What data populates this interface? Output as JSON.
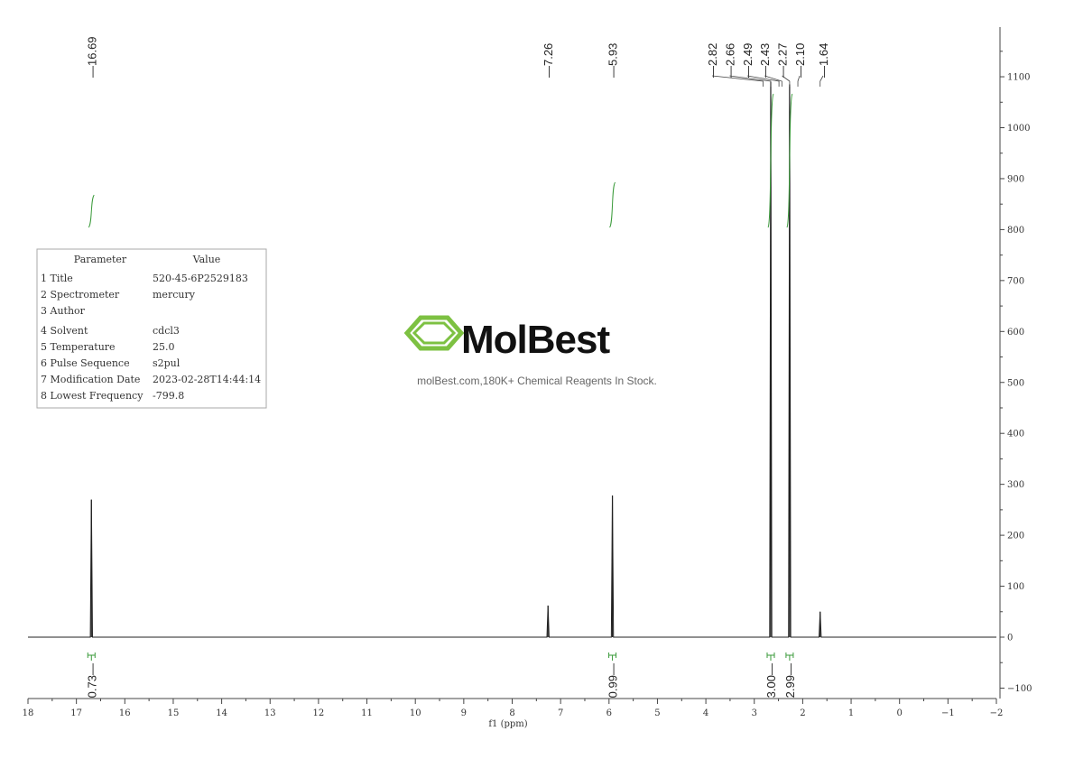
{
  "chart_data": {
    "type": "line",
    "xlabel": "f1 (ppm)",
    "xlim": [
      18,
      -2
    ],
    "ylim": [
      -120,
      1200
    ],
    "x_ticks": [
      "18",
      "17",
      "16",
      "15",
      "14",
      "13",
      "12",
      "11",
      "10",
      "9",
      "8",
      "7",
      "6",
      "5",
      "4",
      "3",
      "2",
      "1",
      "0",
      "−1",
      "−2"
    ],
    "y_ticks": [
      "1100",
      "1000",
      "900",
      "800",
      "700",
      "600",
      "500",
      "400",
      "300",
      "200",
      "100",
      "0",
      "−100"
    ],
    "peaks": [
      {
        "ppm": 16.69,
        "height": 270
      },
      {
        "ppm": 7.26,
        "height": 62
      },
      {
        "ppm": 5.93,
        "height": 278
      },
      {
        "ppm": 2.66,
        "height": 1090
      },
      {
        "ppm": 2.27,
        "height": 1085
      },
      {
        "ppm": 1.64,
        "height": 50
      }
    ],
    "peak_labels": [
      "16.69",
      "7.26",
      "5.93",
      "2.82",
      "2.66",
      "2.49",
      "2.43",
      "2.27",
      "2.10",
      "1.64"
    ],
    "peak_label_ppm": [
      16.69,
      7.26,
      5.93,
      2.82,
      2.66,
      2.49,
      2.43,
      2.27,
      2.1,
      1.64
    ],
    "integrals": [
      {
        "ppm": 16.69,
        "value": "0.73"
      },
      {
        "ppm": 5.93,
        "value": "0.99"
      },
      {
        "ppm": 2.66,
        "value": "3.00"
      },
      {
        "ppm": 2.27,
        "value": "2.99"
      }
    ],
    "integral_color": "#3a9a3a"
  },
  "param_table": {
    "header_param": "Parameter",
    "header_value": "Value",
    "rows": [
      {
        "num": "1",
        "param": "Title",
        "value": "520-45-6P2529183"
      },
      {
        "num": "2",
        "param": "Spectrometer",
        "value": "mercury"
      },
      {
        "num": "3",
        "param": "Author",
        "value": ""
      },
      {
        "num": "4",
        "param": "Solvent",
        "value": "cdcl3"
      },
      {
        "num": "5",
        "param": "Temperature",
        "value": "25.0"
      },
      {
        "num": "6",
        "param": "Pulse Sequence",
        "value": "s2pul"
      },
      {
        "num": "7",
        "param": "Modification Date",
        "value": "2023-02-28T14:44:14"
      },
      {
        "num": "8",
        "param": "Lowest Frequency",
        "value": "-799.8"
      }
    ]
  },
  "watermark": {
    "brand": "MolBest",
    "tagline": "molBest.com,180K+ Chemical Reagents In Stock.",
    "logo_color": "#7dc142"
  }
}
